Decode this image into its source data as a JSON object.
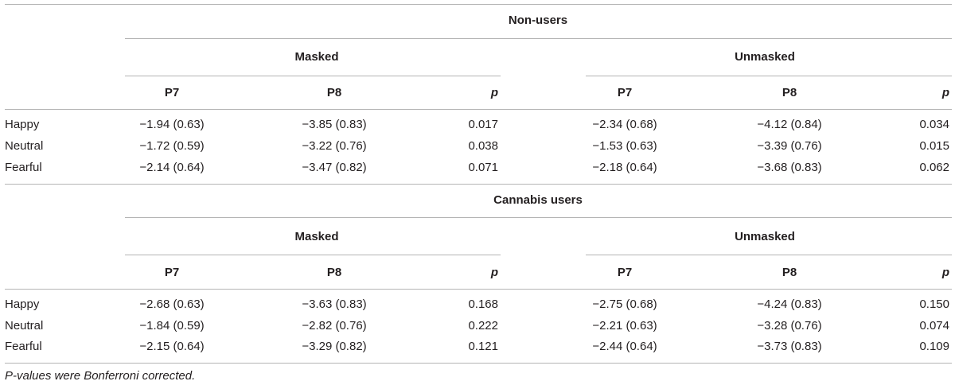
{
  "footnote": "P-values were Bonferroni corrected.",
  "groups": [
    {
      "name": "Non-users",
      "conditions": [
        "Masked",
        "Unmasked"
      ],
      "columns": [
        "P7",
        "P8",
        "p",
        "P7",
        "P8",
        "p"
      ],
      "rows": [
        {
          "label": "Happy",
          "cells": [
            "−1.94 (0.63)",
            "−3.85 (0.83)",
            "0.017",
            "−2.34 (0.68)",
            "−4.12 (0.84)",
            "0.034"
          ]
        },
        {
          "label": "Neutral",
          "cells": [
            "−1.72 (0.59)",
            "−3.22 (0.76)",
            "0.038",
            "−1.53 (0.63)",
            "−3.39 (0.76)",
            "0.015"
          ]
        },
        {
          "label": "Fearful",
          "cells": [
            "−2.14 (0.64)",
            "−3.47 (0.82)",
            "0.071",
            "−2.18 (0.64)",
            "−3.68 (0.83)",
            "0.062"
          ]
        }
      ]
    },
    {
      "name": "Cannabis users",
      "conditions": [
        "Masked",
        "Unmasked"
      ],
      "columns": [
        "P7",
        "P8",
        "p",
        "P7",
        "P8",
        "p"
      ],
      "rows": [
        {
          "label": "Happy",
          "cells": [
            "−2.68 (0.63)",
            "−3.63 (0.83)",
            "0.168",
            "−2.75 (0.68)",
            "−4.24 (0.83)",
            "0.150"
          ]
        },
        {
          "label": "Neutral",
          "cells": [
            "−1.84 (0.59)",
            "−2.82 (0.76)",
            "0.222",
            "−2.21 (0.63)",
            "−3.28 (0.76)",
            "0.074"
          ]
        },
        {
          "label": "Fearful",
          "cells": [
            "−2.15 (0.64)",
            "−3.29 (0.82)",
            "0.121",
            "−2.44 (0.64)",
            "−3.73 (0.83)",
            "0.109"
          ]
        }
      ]
    }
  ]
}
